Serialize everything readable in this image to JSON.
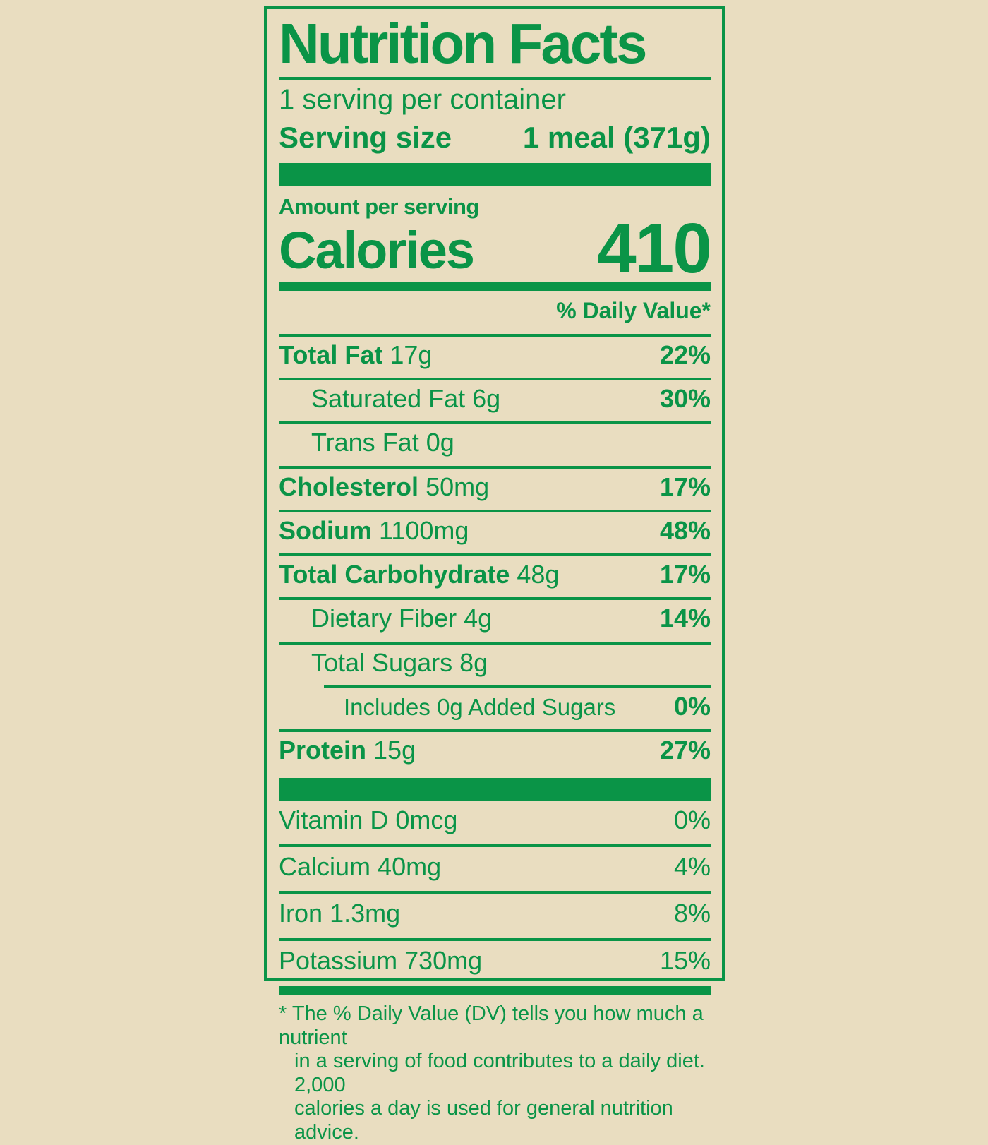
{
  "colors": {
    "green": "#0a9447",
    "background": "#e9ddc0"
  },
  "label": {
    "title": "Nutrition Facts",
    "servings_per_container": "1 serving per container",
    "serving_size_label": "Serving size",
    "serving_size_value": "1 meal (371g)",
    "amount_per_serving": "Amount per serving",
    "calories_label": "Calories",
    "calories_value": "410",
    "daily_value_header": "% Daily Value*",
    "nutrients": [
      {
        "name": "Total Fat",
        "amount": "17g",
        "dv": "22%"
      },
      {
        "name": "Saturated Fat",
        "amount": "6g",
        "dv": "30%"
      },
      {
        "name": "Trans Fat",
        "amount": "0g",
        "dv": ""
      },
      {
        "name": "Cholesterol",
        "amount": "50mg",
        "dv": "17%"
      },
      {
        "name": "Sodium",
        "amount": "1100mg",
        "dv": "48%"
      },
      {
        "name": "Total Carbohydrate",
        "amount": "48g",
        "dv": "17%"
      },
      {
        "name": "Dietary Fiber",
        "amount": "4g",
        "dv": "14%"
      },
      {
        "name": "Total Sugars",
        "amount": "8g",
        "dv": ""
      },
      {
        "name": "Includes 0g Added Sugars",
        "amount": "",
        "dv": "0%"
      },
      {
        "name": "Protein",
        "amount": "15g",
        "dv": "27%"
      }
    ],
    "vitamins": [
      {
        "name": "Vitamin D",
        "amount": "0mcg",
        "dv": "0%"
      },
      {
        "name": "Calcium",
        "amount": "40mg",
        "dv": "4%"
      },
      {
        "name": "Iron",
        "amount": "1.3mg",
        "dv": "8%"
      },
      {
        "name": "Potassium",
        "amount": "730mg",
        "dv": "15%"
      }
    ],
    "footnote_lines": [
      "* The % Daily Value (DV) tells you how much a nutrient",
      "in a serving of food contributes to a daily diet. 2,000",
      "calories a day is used for general nutrition advice."
    ]
  }
}
